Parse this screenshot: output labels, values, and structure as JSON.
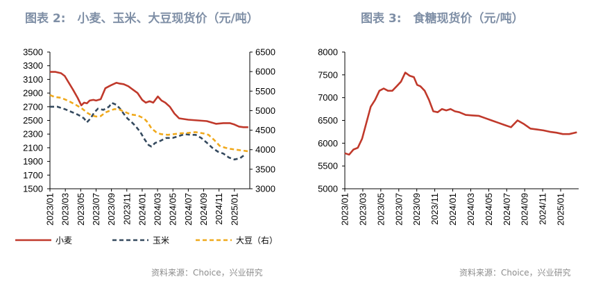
{
  "chart_data": [
    {
      "type": "line",
      "title": "图表 2:　小麦、玉米、大豆现货价（元/吨）",
      "x_ticks": [
        "2023/01",
        "2023/03",
        "2023/05",
        "2023/07",
        "2023/09",
        "2023/11",
        "2024/01",
        "2024/03",
        "2024/05",
        "2024/07",
        "2024/09",
        "2024/11",
        "2025/01"
      ],
      "x_range": [
        "2023-01",
        "2025-03"
      ],
      "y_left": {
        "min": 1500,
        "max": 3500,
        "ticks": [
          1500,
          1700,
          1900,
          2100,
          2300,
          2500,
          2700,
          2900,
          3100,
          3300,
          3500
        ]
      },
      "y_right": {
        "min": 3000,
        "max": 6500,
        "ticks": [
          3000,
          3500,
          4000,
          4500,
          5000,
          5500,
          6000,
          6500
        ]
      },
      "grid": false,
      "legend_position": "bottom",
      "series": [
        {
          "name": "小麦",
          "axis": "left",
          "color": "#c0392b",
          "style": "solid",
          "x": [
            2023.0,
            2023.06,
            2023.12,
            2023.16,
            2023.2,
            2023.25,
            2023.3,
            2023.34,
            2023.37,
            2023.4,
            2023.43,
            2023.47,
            2023.5,
            2023.55,
            2023.6,
            2023.64,
            2023.67,
            2023.72,
            2023.75,
            2023.8,
            2023.85,
            2023.9,
            2023.95,
            2024.0,
            2024.04,
            2024.08,
            2024.12,
            2024.17,
            2024.21,
            2024.25,
            2024.3,
            2024.35,
            2024.4,
            2024.5,
            2024.6,
            2024.7,
            2024.8,
            2024.88,
            2024.95,
            2025.0,
            2025.05,
            2025.1,
            2025.15
          ],
          "y": [
            3210,
            3210,
            3190,
            3150,
            3060,
            2950,
            2830,
            2720,
            2760,
            2750,
            2790,
            2800,
            2790,
            2810,
            2970,
            3000,
            3020,
            3050,
            3040,
            3030,
            3000,
            2950,
            2900,
            2800,
            2760,
            2780,
            2760,
            2850,
            2790,
            2760,
            2700,
            2600,
            2530,
            2510,
            2500,
            2490,
            2450,
            2460,
            2460,
            2440,
            2410,
            2400,
            2400
          ]
        },
        {
          "name": "玉米",
          "axis": "right",
          "color": "#34495e",
          "style": "dashed",
          "x": [
            2023.0,
            2023.08,
            2023.16,
            2023.25,
            2023.3,
            2023.34,
            2023.37,
            2023.4,
            2023.44,
            2023.48,
            2023.52,
            2023.58,
            2023.64,
            2023.67,
            2023.72,
            2023.76,
            2023.8,
            2023.84,
            2023.88,
            2023.93,
            2023.98,
            2024.03,
            2024.07,
            2024.1,
            2024.14,
            2024.2,
            2024.26,
            2024.33,
            2024.4,
            2024.46,
            2024.52,
            2024.58,
            2024.64,
            2024.7,
            2024.76,
            2024.82,
            2024.88,
            2024.94,
            2025.0,
            2025.06,
            2025.1
          ],
          "y": [
            5100,
            5100,
            5040,
            4950,
            4900,
            4850,
            4800,
            4700,
            4800,
            4950,
            5050,
            5020,
            5100,
            5200,
            5150,
            5050,
            4920,
            4800,
            4720,
            4600,
            4450,
            4250,
            4120,
            4080,
            4170,
            4230,
            4300,
            4300,
            4350,
            4400,
            4380,
            4380,
            4300,
            4180,
            4050,
            3950,
            3900,
            3800,
            3750,
            3780,
            3850
          ]
        },
        {
          "name": "大豆（右）",
          "axis": "right",
          "color": "#f0a91c",
          "style": "dashed",
          "x": [
            2023.0,
            2023.05,
            2023.12,
            2023.2,
            2023.28,
            2023.35,
            2023.4,
            2023.45,
            2023.5,
            2023.55,
            2023.6,
            2023.65,
            2023.7,
            2023.75,
            2023.8,
            2023.88,
            2023.95,
            2024.02,
            2024.06,
            2024.1,
            2024.15,
            2024.2,
            2024.28,
            2024.35,
            2024.42,
            2024.5,
            2024.58,
            2024.66,
            2024.72,
            2024.78,
            2024.84,
            2024.9,
            2024.96,
            2025.02,
            2025.08,
            2025.15
          ],
          "y": [
            5400,
            5350,
            5330,
            5250,
            5150,
            5050,
            4950,
            4880,
            4850,
            4860,
            4950,
            5000,
            5040,
            5030,
            4980,
            4900,
            4880,
            4800,
            4700,
            4550,
            4450,
            4400,
            4380,
            4400,
            4420,
            4430,
            4450,
            4420,
            4380,
            4250,
            4100,
            4050,
            4020,
            4000,
            3980,
            3960
          ]
        }
      ]
    },
    {
      "type": "line",
      "title": "图表 3:　食糖现货价（元/吨）",
      "x_ticks": [
        "2023/01",
        "2023/03",
        "2023/05",
        "2023/07",
        "2023/09",
        "2023/11",
        "2024/01",
        "2024/03",
        "2024/05",
        "2024/07",
        "2024/09",
        "2024/11",
        "2025/01"
      ],
      "x_range": [
        "2023-01",
        "2025-03"
      ],
      "y_left": {
        "min": 5000,
        "max": 8000,
        "ticks": [
          5000,
          5500,
          6000,
          6500,
          7000,
          7500,
          8000
        ]
      },
      "grid": false,
      "series": [
        {
          "name": "食糖",
          "axis": "left",
          "color": "#c0392b",
          "style": "solid",
          "x": [
            2023.0,
            2023.04,
            2023.08,
            2023.12,
            2023.16,
            2023.2,
            2023.24,
            2023.28,
            2023.32,
            2023.36,
            2023.4,
            2023.44,
            2023.48,
            2023.52,
            2023.56,
            2023.6,
            2023.64,
            2023.67,
            2023.7,
            2023.74,
            2023.78,
            2023.82,
            2023.86,
            2023.9,
            2023.94,
            2023.98,
            2024.02,
            2024.06,
            2024.12,
            2024.18,
            2024.24,
            2024.3,
            2024.36,
            2024.42,
            2024.48,
            2024.54,
            2024.6,
            2024.66,
            2024.72,
            2024.78,
            2024.84,
            2024.9,
            2024.96,
            2025.02,
            2025.08,
            2025.15
          ],
          "y": [
            5780,
            5750,
            5860,
            5900,
            6100,
            6450,
            6800,
            6950,
            7150,
            7200,
            7150,
            7150,
            7250,
            7350,
            7550,
            7480,
            7450,
            7280,
            7250,
            7150,
            6950,
            6700,
            6680,
            6750,
            6720,
            6750,
            6700,
            6680,
            6620,
            6610,
            6600,
            6550,
            6500,
            6450,
            6400,
            6350,
            6500,
            6420,
            6320,
            6300,
            6280,
            6250,
            6230,
            6200,
            6200,
            6240
          ]
        }
      ]
    }
  ],
  "legend": [
    {
      "label": "小麦",
      "color": "#c0392b",
      "style": "solid"
    },
    {
      "label": "玉米",
      "color": "#34495e",
      "style": "dashed"
    },
    {
      "label": "大豆（右）",
      "color": "#f0a91c",
      "style": "dashed"
    }
  ],
  "source1": "资料来源：Choice，兴业研究",
  "source2": "资料来源：Choice，兴业研究"
}
